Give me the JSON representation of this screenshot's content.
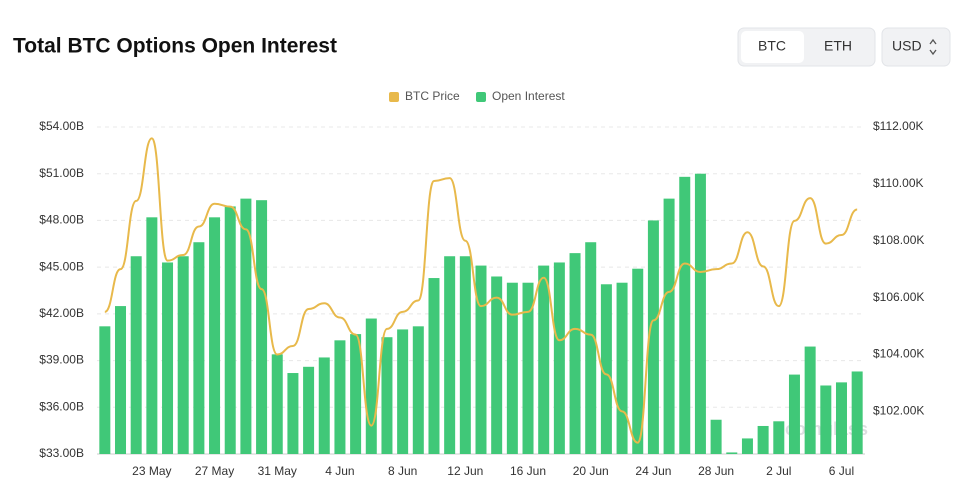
{
  "header": {
    "title": "Total BTC Options Open Interest",
    "toggle": [
      "BTC",
      "ETH"
    ],
    "currency": "USD"
  },
  "watermark": "coinglass",
  "chart_data": {
    "type": "bar",
    "categories": [
      null,
      null,
      null,
      "23 May",
      null,
      null,
      null,
      "27 May",
      null,
      null,
      null,
      "31 May",
      null,
      null,
      null,
      "4 Jun",
      null,
      null,
      null,
      "8 Jun",
      null,
      null,
      null,
      "12 Jun",
      null,
      null,
      null,
      "16 Jun",
      null,
      null,
      null,
      "20 Jun",
      null,
      null,
      null,
      "24 Jun",
      null,
      null,
      null,
      "28 Jun",
      null,
      null,
      null,
      "2 Jul",
      null,
      null,
      null,
      "6 Jul",
      null
    ],
    "series": [
      {
        "name": "BTC Price",
        "type": "line",
        "axis": "y2",
        "color": "#e8b94b",
        "values": [
          105.5,
          107.0,
          109.4,
          111.6,
          107.3,
          107.5,
          108.5,
          109.3,
          109.2,
          108.4,
          106.3,
          104.0,
          104.3,
          105.6,
          105.8,
          105.3,
          104.7,
          101.5,
          104.9,
          105.5,
          105.9,
          110.1,
          110.2,
          108.0,
          105.7,
          106.0,
          105.4,
          105.5,
          106.7,
          104.5,
          104.9,
          104.7,
          103.3,
          102.0,
          100.9,
          105.2,
          106.2,
          107.2,
          106.9,
          107.0,
          107.2,
          108.3,
          107.1,
          105.7,
          108.7,
          109.5,
          107.9,
          108.2,
          109.1
        ]
      },
      {
        "name": "Open Interest",
        "type": "bar",
        "color": "#40c878",
        "values": [
          41.2,
          42.5,
          45.7,
          48.2,
          45.3,
          45.7,
          46.6,
          48.2,
          48.9,
          49.4,
          49.3,
          39.4,
          38.2,
          38.6,
          39.2,
          40.3,
          40.7,
          41.7,
          40.5,
          41.0,
          41.2,
          44.3,
          45.7,
          45.7,
          45.1,
          44.4,
          44.0,
          44.0,
          45.1,
          45.3,
          45.9,
          46.6,
          43.9,
          44.0,
          44.9,
          48.0,
          49.4,
          50.8,
          51.0,
          35.2,
          33.1,
          34.0,
          34.8,
          35.1,
          38.1,
          39.9,
          37.4,
          37.6,
          38.3
        ]
      }
    ],
    "ylim": [
      33,
      54
    ],
    "yticks": [
      {
        "value": 33,
        "label": "$33.00B"
      },
      {
        "value": 36,
        "label": "$36.00B"
      },
      {
        "value": 39,
        "label": "$39.00B"
      },
      {
        "value": 42,
        "label": "$42.00B"
      },
      {
        "value": 45,
        "label": "$45.00B"
      },
      {
        "value": 48,
        "label": "$48.00B"
      },
      {
        "value": 51,
        "label": "$51.00B"
      },
      {
        "value": 54,
        "label": "$54.00B"
      }
    ],
    "y2lim": [
      100.5,
      112
    ],
    "y2ticks": [
      {
        "value": 102,
        "label": "$102.00K"
      },
      {
        "value": 104,
        "label": "$104.00K"
      },
      {
        "value": 106,
        "label": "$106.00K"
      },
      {
        "value": 108,
        "label": "$108.00K"
      },
      {
        "value": 110,
        "label": "$110.00K"
      },
      {
        "value": 112,
        "label": "$112.00K"
      }
    ],
    "grid": true,
    "legend": "top"
  }
}
